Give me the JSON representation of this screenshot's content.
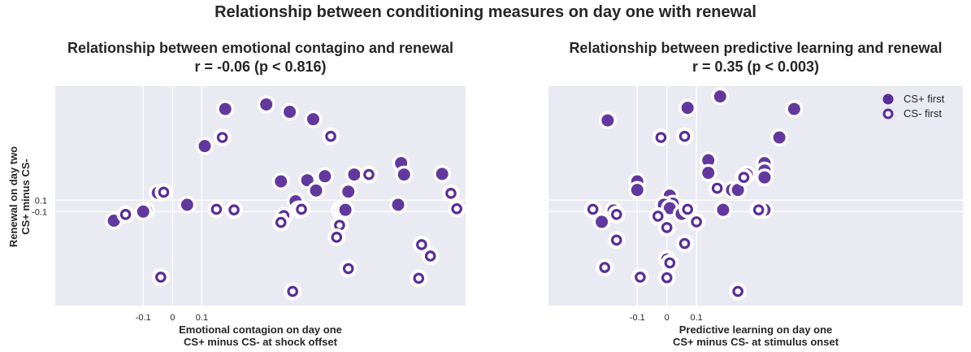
{
  "suptitle": "Relationship between conditioning measures on day one with renewal",
  "colors": {
    "point": "#5a2d9a",
    "axes_bg": "#eaeaf2",
    "grid": "#ffffff"
  },
  "ylabel_line1": "Renewal on day two",
  "ylabel_line2": "CS+ minus CS-",
  "legend": [
    {
      "label": "CS+ first",
      "marker": "filled"
    },
    {
      "label": "CS- first",
      "marker": "open"
    }
  ],
  "chart_data": [
    {
      "type": "scatter",
      "title_line1": "Relationship between emotional contagino and renewal",
      "title_line2": "r = -0.06 (p < 0.816)",
      "xlabel_line1": "Emotional contagion on day one",
      "xlabel_line2": "CS+ minus CS- at shock offset",
      "xticks": [
        -0.1,
        0,
        0.1
      ],
      "xtick_labels": [
        "-0.1",
        "0",
        "0.1"
      ],
      "yticks": [
        -0.1,
        0.1
      ],
      "ytick_labels": [
        "-0.1",
        "0.1"
      ],
      "xlim": [
        -0.4,
        1.0
      ],
      "ylim": [
        -1.75,
        2.1
      ],
      "grid": true,
      "series": [
        {
          "name": "CS+ first",
          "marker": "filled",
          "points": [
            [
              0.18,
              1.7
            ],
            [
              0.32,
              1.78
            ],
            [
              0.4,
              1.65
            ],
            [
              0.48,
              1.52
            ],
            [
              0.11,
              1.05
            ],
            [
              0.37,
              0.43
            ],
            [
              0.46,
              0.45
            ],
            [
              0.52,
              0.52
            ],
            [
              0.62,
              0.55
            ],
            [
              0.78,
              0.75
            ],
            [
              0.79,
              0.55
            ],
            [
              0.92,
              0.56
            ],
            [
              0.6,
              0.25
            ],
            [
              0.49,
              0.27
            ],
            [
              0.42,
              0.08
            ],
            [
              0.43,
              -0.06
            ],
            [
              0.57,
              -0.07
            ],
            [
              0.58,
              -0.07
            ],
            [
              0.59,
              -0.07
            ],
            [
              -0.05,
              0.23
            ],
            [
              -0.09,
              -0.08
            ],
            [
              -0.1,
              -0.1
            ],
            [
              -0.2,
              -0.26
            ],
            [
              0.05,
              0.02
            ],
            [
              0.77,
              0.02
            ]
          ]
        },
        {
          "name": "CS- first",
          "marker": "open",
          "points": [
            [
              0.54,
              1.22
            ],
            [
              0.17,
              1.2
            ],
            [
              -0.03,
              0.24
            ],
            [
              0.67,
              0.55
            ],
            [
              -0.16,
              -0.15
            ],
            [
              0.15,
              -0.06
            ],
            [
              0.21,
              -0.07
            ],
            [
              0.38,
              -0.17
            ],
            [
              0.37,
              -0.29
            ],
            [
              0.44,
              -0.06
            ],
            [
              0.97,
              -0.05
            ],
            [
              0.95,
              0.22
            ],
            [
              0.57,
              -0.34
            ],
            [
              0.56,
              -0.55
            ],
            [
              0.85,
              -0.68
            ],
            [
              0.88,
              -0.88
            ],
            [
              0.6,
              -1.1
            ],
            [
              -0.04,
              -1.25
            ],
            [
              0.41,
              -1.5
            ],
            [
              0.84,
              -1.27
            ]
          ]
        }
      ]
    },
    {
      "type": "scatter",
      "title_line1": "Relationship between predictive learning and renewal",
      "title_line2": "r = 0.35 (p < 0.003)",
      "xlabel_line1": "Predictive learning on day one",
      "xlabel_line2": "CS+ minus CS- at stimulus onset",
      "xticks": [
        -0.1,
        0,
        0.1
      ],
      "xtick_labels": [
        "-0.1",
        "0",
        "0.1"
      ],
      "yticks": [
        -0.1,
        0.1
      ],
      "ytick_labels": [
        "-0.1",
        "0.1"
      ],
      "xlim": [
        -0.4,
        1.0
      ],
      "ylim": [
        -1.75,
        2.1
      ],
      "grid": true,
      "legend_position": "upper right",
      "series": [
        {
          "name": "CS+ first",
          "marker": "filled",
          "points": [
            [
              -0.2,
              1.5
            ],
            [
              0.07,
              1.72
            ],
            [
              0.18,
              1.92
            ],
            [
              0.43,
              1.7
            ],
            [
              0.38,
              1.2
            ],
            [
              0.33,
              0.75
            ],
            [
              0.33,
              0.62
            ],
            [
              0.33,
              0.5
            ],
            [
              0.14,
              0.8
            ],
            [
              0.14,
              0.58
            ],
            [
              0.27,
              0.55
            ],
            [
              0.22,
              0.28
            ],
            [
              0.24,
              0.28
            ],
            [
              -0.1,
              0.43
            ],
            [
              -0.1,
              0.28
            ],
            [
              0.01,
              0.18
            ],
            [
              0.02,
              0.04
            ],
            [
              -0.01,
              0.02
            ],
            [
              0.01,
              -0.04
            ],
            [
              0.19,
              -0.07
            ],
            [
              0.33,
              -0.07
            ],
            [
              0.05,
              -0.14
            ],
            [
              -0.18,
              -0.08
            ],
            [
              -0.22,
              -0.28
            ]
          ]
        },
        {
          "name": "CS- first",
          "marker": "open",
          "points": [
            [
              -0.02,
              1.2
            ],
            [
              0.06,
              1.22
            ],
            [
              0.26,
              0.5
            ],
            [
              0.17,
              0.31
            ],
            [
              0.07,
              -0.06
            ],
            [
              -0.25,
              -0.06
            ],
            [
              -0.17,
              -0.15
            ],
            [
              -0.03,
              -0.18
            ],
            [
              0.1,
              -0.28
            ],
            [
              0.0,
              -0.38
            ],
            [
              -0.17,
              -0.6
            ],
            [
              0.06,
              -0.66
            ],
            [
              -0.0,
              -0.93
            ],
            [
              0.01,
              -1.0
            ],
            [
              -0.21,
              -1.08
            ],
            [
              -0.09,
              -1.25
            ],
            [
              0.0,
              -1.26
            ],
            [
              0.24,
              -1.5
            ],
            [
              0.31,
              -0.07
            ]
          ]
        }
      ]
    }
  ]
}
